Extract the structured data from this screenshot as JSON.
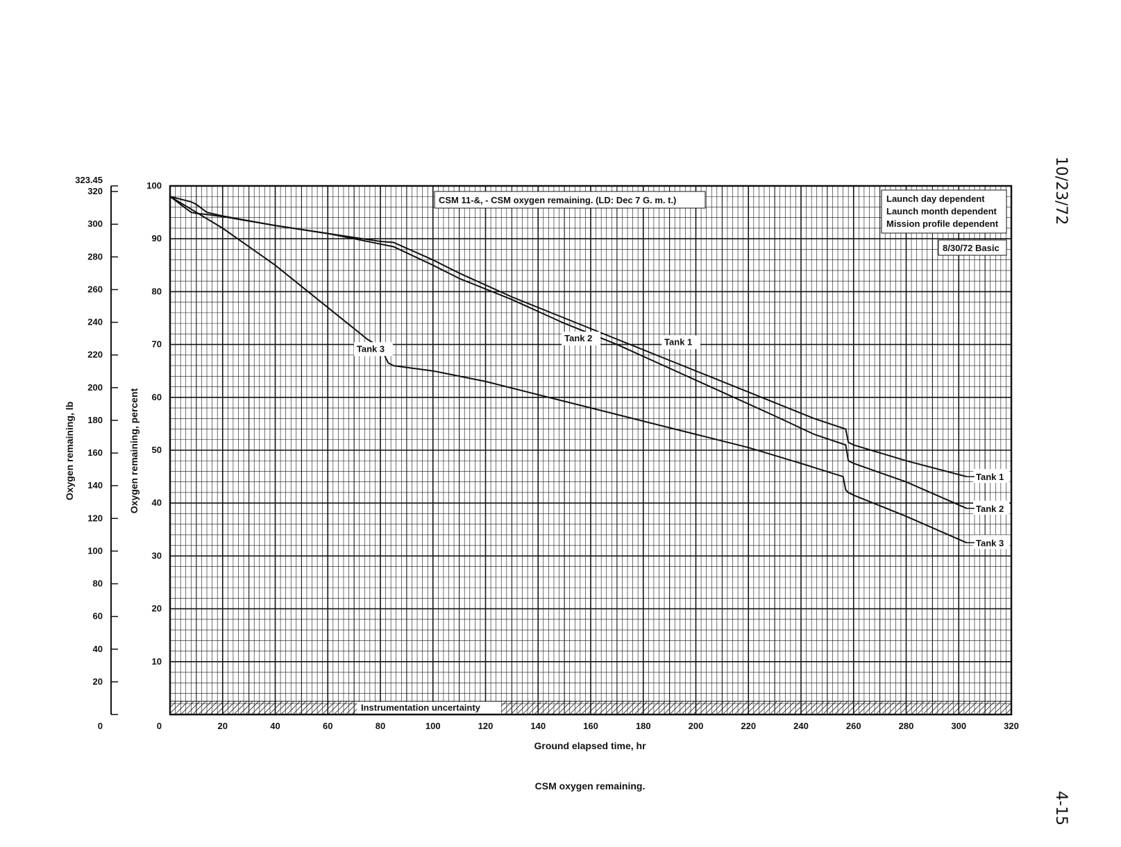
{
  "side_date": "10/23/72",
  "page_number": "4-15",
  "caption": "CSM oxygen remaining.",
  "chart_data": {
    "type": "line",
    "title": "CSM 11-&, - CSM oxygen remaining.  (LD: Dec 7 G. m. t.)",
    "xlabel": "Ground elapsed time, hr",
    "ylabel": "Oxygen remaining, percent",
    "y2label": "Oxygen remaining, lb",
    "xlim": [
      0,
      320
    ],
    "ylim": [
      0,
      100
    ],
    "y2lim": [
      0,
      323.45
    ],
    "x_ticks": [
      "0",
      "20",
      "40",
      "60",
      "80",
      "100",
      "120",
      "140",
      "160",
      "180",
      "200",
      "220",
      "240",
      "260",
      "280",
      "300",
      "320"
    ],
    "y_ticks": [
      "10",
      "20",
      "30",
      "40",
      "50",
      "60",
      "70",
      "80",
      "90",
      "100"
    ],
    "y2_ticks": [
      "0",
      "20",
      "40",
      "60",
      "80",
      "100",
      "120",
      "140",
      "160",
      "180",
      "200",
      "220",
      "240",
      "260",
      "280",
      "300",
      "320",
      "323.45"
    ],
    "grid": true,
    "legend_box": [
      "Launch day dependent",
      "Launch month dependent",
      "Mission profile dependent"
    ],
    "basic_label": "8/30/72 Basic",
    "uncertainty_label": "Instrumentation uncertainty",
    "uncertainty_band": [
      0,
      2.5
    ],
    "series": [
      {
        "name": "Tank 1",
        "x": [
          0,
          4,
          8,
          10,
          14,
          20,
          40,
          60,
          80,
          85,
          100,
          110,
          130,
          150,
          170,
          190,
          210,
          230,
          245,
          257,
          258,
          260,
          280,
          303
        ],
        "y": [
          98,
          96.5,
          95,
          94.8,
          94.6,
          94.2,
          92.5,
          91,
          89.5,
          89.3,
          86,
          83.5,
          79,
          75,
          71,
          67,
          63,
          59,
          56,
          54,
          51.5,
          51,
          48,
          45
        ]
      },
      {
        "name": "Tank 2",
        "x": [
          0,
          4,
          8,
          10,
          14,
          20,
          40,
          60,
          80,
          85,
          100,
          110,
          130,
          150,
          170,
          190,
          210,
          230,
          245,
          257,
          258,
          260,
          280,
          303
        ],
        "y": [
          98,
          97.5,
          97,
          96.5,
          95,
          94.3,
          92.5,
          91,
          89,
          88.5,
          85,
          82.5,
          78.5,
          74,
          70,
          65.5,
          61,
          56.5,
          53,
          51,
          48,
          47.5,
          44,
          39
        ]
      },
      {
        "name": "Tank 3",
        "x": [
          0,
          10,
          20,
          30,
          40,
          60,
          75,
          80,
          83,
          85,
          100,
          120,
          140,
          160,
          180,
          200,
          220,
          240,
          256,
          257,
          258,
          260,
          280,
          303
        ],
        "y": [
          98,
          95,
          92,
          88.5,
          85,
          77,
          71,
          69.5,
          66.5,
          66,
          65,
          63,
          60.5,
          58,
          55.5,
          53,
          50.5,
          47.5,
          45,
          42.5,
          42,
          41.5,
          37.5,
          32.5
        ]
      }
    ],
    "inline_labels": [
      {
        "text": "Tank 3",
        "x": 71,
        "y": 68.6
      },
      {
        "text": "Tank 2",
        "x": 150,
        "y": 70.6
      },
      {
        "text": "Tank 1",
        "x": 188,
        "y": 69.9
      }
    ],
    "end_labels": [
      "Tank 1",
      "Tank 2",
      "Tank 3"
    ]
  }
}
